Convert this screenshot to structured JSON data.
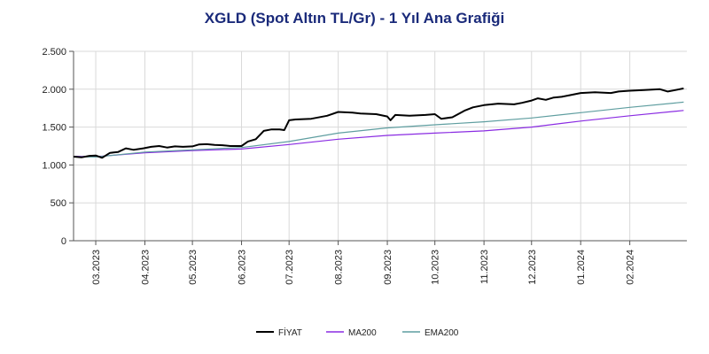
{
  "chart_data": {
    "type": "line",
    "title": "XGLD (Spot Altın TL/Gr) - 1 Yıl Ana Grafiği",
    "xlabel": "",
    "ylabel": "",
    "ylim": [
      0,
      2500
    ],
    "y_ticks": [
      {
        "value": 0,
        "label": "0"
      },
      {
        "value": 500,
        "label": "500"
      },
      {
        "value": 1000,
        "label": "1.000"
      },
      {
        "value": 1500,
        "label": "1.500"
      },
      {
        "value": 2000,
        "label": "2.000"
      },
      {
        "value": 2500,
        "label": "2.500"
      }
    ],
    "xlim": [
      "2023-02-15",
      "2024-03-08"
    ],
    "x_ticks": [
      {
        "date": "2023-03-01",
        "label": "03.2023"
      },
      {
        "date": "2023-04-01",
        "label": "04.2023"
      },
      {
        "date": "2023-05-01",
        "label": "05.2023"
      },
      {
        "date": "2023-06-01",
        "label": "06.2023"
      },
      {
        "date": "2023-07-01",
        "label": "07.2023"
      },
      {
        "date": "2023-08-01",
        "label": "08.2023"
      },
      {
        "date": "2023-09-01",
        "label": "09.2023"
      },
      {
        "date": "2023-10-01",
        "label": "10.2023"
      },
      {
        "date": "2023-11-01",
        "label": "11.2023"
      },
      {
        "date": "2023-12-01",
        "label": "12.2023"
      },
      {
        "date": "2024-01-01",
        "label": "01.2024"
      },
      {
        "date": "2024-02-01",
        "label": "02.2024"
      }
    ],
    "grid": true,
    "legend": "bottom-center",
    "series": [
      {
        "name": "FİYAT",
        "color": "#000000",
        "points": [
          [
            "2023-02-15",
            1110
          ],
          [
            "2023-02-20",
            1100
          ],
          [
            "2023-02-25",
            1120
          ],
          [
            "2023-03-01",
            1125
          ],
          [
            "2023-03-05",
            1095
          ],
          [
            "2023-03-10",
            1160
          ],
          [
            "2023-03-15",
            1170
          ],
          [
            "2023-03-20",
            1220
          ],
          [
            "2023-03-25",
            1200
          ],
          [
            "2023-03-31",
            1220
          ],
          [
            "2023-04-05",
            1240
          ],
          [
            "2023-04-10",
            1250
          ],
          [
            "2023-04-15",
            1230
          ],
          [
            "2023-04-20",
            1245
          ],
          [
            "2023-04-25",
            1240
          ],
          [
            "2023-05-01",
            1245
          ],
          [
            "2023-05-05",
            1270
          ],
          [
            "2023-05-10",
            1275
          ],
          [
            "2023-05-15",
            1265
          ],
          [
            "2023-05-20",
            1260
          ],
          [
            "2023-05-25",
            1250
          ],
          [
            "2023-06-01",
            1250
          ],
          [
            "2023-06-05",
            1310
          ],
          [
            "2023-06-10",
            1340
          ],
          [
            "2023-06-15",
            1450
          ],
          [
            "2023-06-20",
            1470
          ],
          [
            "2023-06-25",
            1470
          ],
          [
            "2023-06-28",
            1460
          ],
          [
            "2023-07-01",
            1590
          ],
          [
            "2023-07-05",
            1600
          ],
          [
            "2023-07-15",
            1610
          ],
          [
            "2023-07-25",
            1650
          ],
          [
            "2023-08-01",
            1700
          ],
          [
            "2023-08-10",
            1690
          ],
          [
            "2023-08-15",
            1680
          ],
          [
            "2023-08-25",
            1670
          ],
          [
            "2023-09-01",
            1640
          ],
          [
            "2023-09-03",
            1590
          ],
          [
            "2023-09-06",
            1660
          ],
          [
            "2023-09-15",
            1650
          ],
          [
            "2023-09-25",
            1660
          ],
          [
            "2023-10-01",
            1670
          ],
          [
            "2023-10-05",
            1610
          ],
          [
            "2023-10-12",
            1630
          ],
          [
            "2023-10-20",
            1720
          ],
          [
            "2023-10-25",
            1760
          ],
          [
            "2023-11-01",
            1790
          ],
          [
            "2023-11-10",
            1810
          ],
          [
            "2023-11-20",
            1800
          ],
          [
            "2023-11-25",
            1820
          ],
          [
            "2023-12-01",
            1850
          ],
          [
            "2023-12-05",
            1880
          ],
          [
            "2023-12-10",
            1860
          ],
          [
            "2023-12-15",
            1890
          ],
          [
            "2023-12-20",
            1900
          ],
          [
            "2023-12-25",
            1920
          ],
          [
            "2024-01-01",
            1950
          ],
          [
            "2024-01-10",
            1960
          ],
          [
            "2024-01-20",
            1950
          ],
          [
            "2024-01-25",
            1970
          ],
          [
            "2024-02-01",
            1980
          ],
          [
            "2024-02-10",
            1990
          ],
          [
            "2024-02-20",
            2000
          ],
          [
            "2024-02-25",
            1970
          ],
          [
            "2024-03-01",
            1990
          ],
          [
            "2024-03-06",
            2010
          ]
        ]
      },
      {
        "name": "MA200",
        "color": "#8a2be2",
        "points": [
          [
            "2023-02-15",
            1115
          ],
          [
            "2023-03-01",
            1110
          ],
          [
            "2023-04-01",
            1160
          ],
          [
            "2023-05-01",
            1190
          ],
          [
            "2023-06-01",
            1210
          ],
          [
            "2023-07-01",
            1270
          ],
          [
            "2023-08-01",
            1340
          ],
          [
            "2023-09-01",
            1390
          ],
          [
            "2023-10-01",
            1420
          ],
          [
            "2023-11-01",
            1450
          ],
          [
            "2023-12-01",
            1500
          ],
          [
            "2024-01-01",
            1580
          ],
          [
            "2024-02-01",
            1650
          ],
          [
            "2024-03-06",
            1720
          ]
        ]
      },
      {
        "name": "EMA200",
        "color": "#5f9ea0",
        "points": [
          [
            "2023-02-15",
            1110
          ],
          [
            "2023-03-01",
            1105
          ],
          [
            "2023-04-01",
            1170
          ],
          [
            "2023-05-01",
            1200
          ],
          [
            "2023-06-01",
            1230
          ],
          [
            "2023-07-01",
            1310
          ],
          [
            "2023-08-01",
            1420
          ],
          [
            "2023-09-01",
            1490
          ],
          [
            "2023-10-01",
            1530
          ],
          [
            "2023-11-01",
            1570
          ],
          [
            "2023-12-01",
            1620
          ],
          [
            "2024-01-01",
            1690
          ],
          [
            "2024-02-01",
            1760
          ],
          [
            "2024-03-06",
            1830
          ]
        ]
      }
    ]
  }
}
